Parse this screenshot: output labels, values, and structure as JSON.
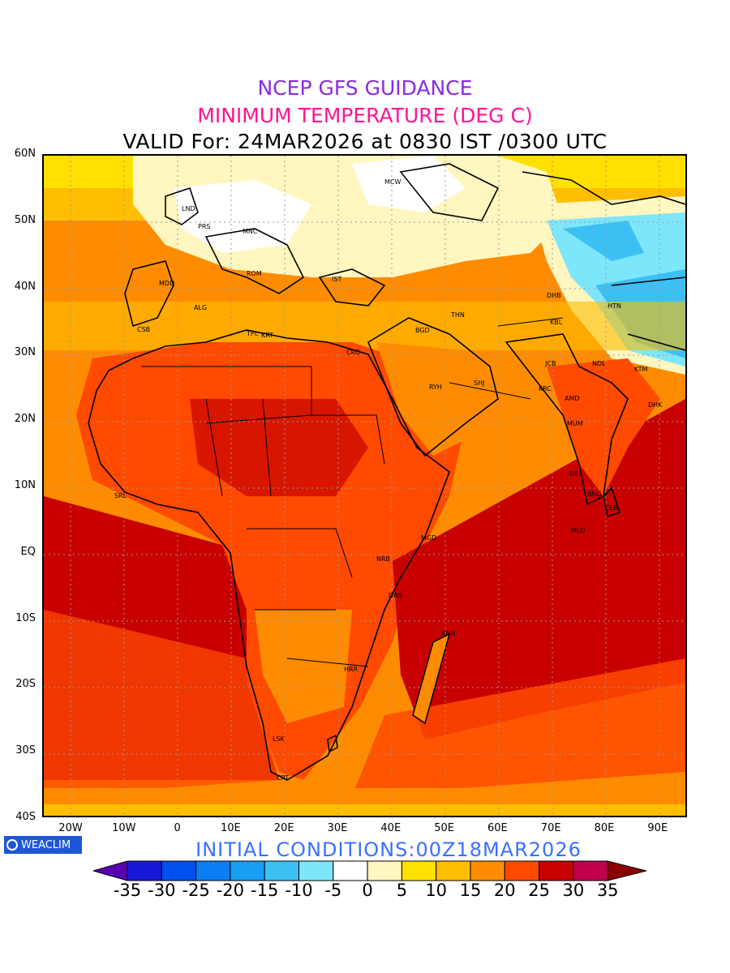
{
  "header": {
    "title": "NCEP GFS GUIDANCE",
    "subtitle": "MINIMUM TEMPERATURE (DEG C)",
    "valid": "VALID For: 24MAR2026 at 0830 IST /0300 UTC"
  },
  "colors": {
    "title": "#8a2be2",
    "subtitle": "#ff1493",
    "init": "#3a70ff"
  },
  "map": {
    "lat_labels": [
      "60N",
      "50N",
      "40N",
      "30N",
      "20N",
      "10N",
      "EQ",
      "10S",
      "20S",
      "30S",
      "40S"
    ],
    "lon_labels": [
      "20W",
      "10W",
      "0",
      "10E",
      "20E",
      "30E",
      "40E",
      "50E",
      "60E",
      "70E",
      "80E",
      "90E"
    ],
    "stations": [
      "MCW",
      "LND",
      "PRS",
      "MNC",
      "ROM",
      "MDD",
      "IST",
      "ALG",
      "CSB",
      "TPL",
      "KRT",
      "CRO",
      "BGD",
      "THN",
      "DHB",
      "HTN",
      "KBL",
      "JCB",
      "NDL",
      "KTM",
      "KRC",
      "AMD",
      "DHK",
      "MUM",
      "RYH",
      "SHJ",
      "DEL",
      "BNG",
      "CLB",
      "MLD",
      "MGD",
      "NRB",
      "DRS",
      "ANN",
      "HRR",
      "LSK",
      "CPT",
      "SRL"
    ]
  },
  "footer": {
    "logo": "WEACLIM",
    "initial_conditions": "INITIAL CONDITIONS:00Z18MAR2026"
  },
  "colorbar": {
    "labels": [
      "-35",
      "-30",
      "-25",
      "-20",
      "-15",
      "-10",
      "-5",
      "0",
      "5",
      "10",
      "15",
      "20",
      "25",
      "30",
      "35"
    ],
    "colors": [
      "#5a00b4",
      "#1818d8",
      "#0050f0",
      "#0a7ef4",
      "#189ef4",
      "#3cc0f4",
      "#7ee6fa",
      "#ffffff",
      "#fff6c0",
      "#ffe000",
      "#ffbe00",
      "#ff8c00",
      "#ff4a00",
      "#c80000",
      "#c0004a",
      "#8c0000"
    ]
  }
}
